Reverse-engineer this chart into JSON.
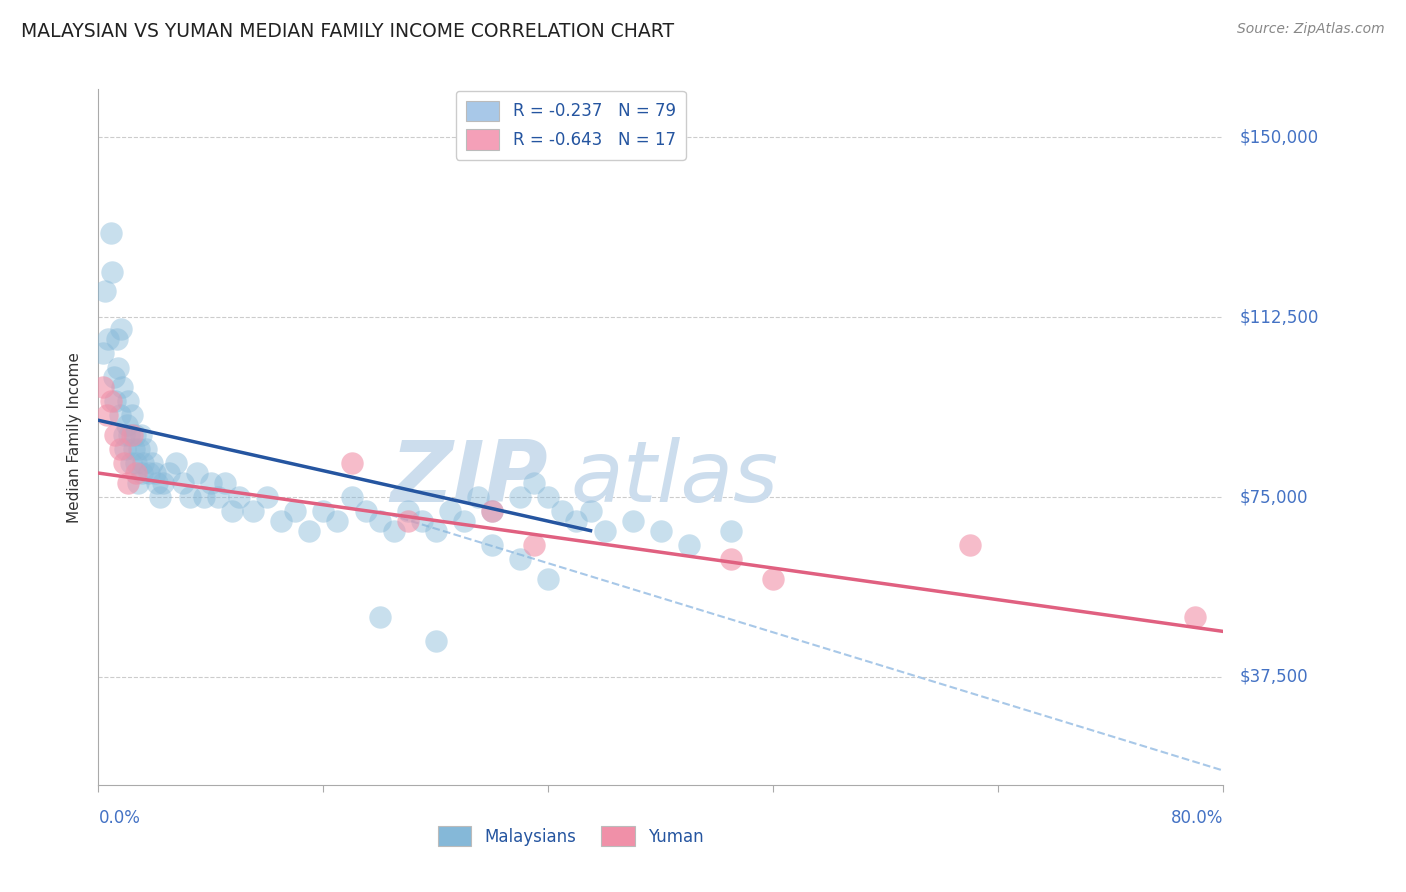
{
  "title": "MALAYSIAN VS YUMAN MEDIAN FAMILY INCOME CORRELATION CHART",
  "source": "Source: ZipAtlas.com",
  "ylabel": "Median Family Income",
  "yticks": [
    37500,
    75000,
    112500,
    150000
  ],
  "ytick_labels": [
    "$37,500",
    "$75,000",
    "$112,500",
    "$150,000"
  ],
  "xmin": 0.0,
  "xmax": 0.8,
  "ymin": 15000,
  "ymax": 160000,
  "legend_entries": [
    {
      "label": "R = -0.237   N = 79",
      "color": "#a8c8e8"
    },
    {
      "label": "R = -0.643   N = 17",
      "color": "#f4a0b8"
    }
  ],
  "legend_bottom": [
    "Malaysians",
    "Yuman"
  ],
  "malaysian_x": [
    0.003,
    0.005,
    0.007,
    0.009,
    0.01,
    0.011,
    0.012,
    0.013,
    0.014,
    0.015,
    0.016,
    0.017,
    0.018,
    0.019,
    0.02,
    0.021,
    0.022,
    0.023,
    0.024,
    0.025,
    0.026,
    0.027,
    0.028,
    0.029,
    0.03,
    0.031,
    0.032,
    0.034,
    0.036,
    0.038,
    0.04,
    0.042,
    0.044,
    0.046,
    0.05,
    0.055,
    0.06,
    0.065,
    0.07,
    0.075,
    0.08,
    0.085,
    0.09,
    0.095,
    0.1,
    0.11,
    0.12,
    0.13,
    0.14,
    0.15,
    0.16,
    0.17,
    0.18,
    0.19,
    0.2,
    0.21,
    0.22,
    0.23,
    0.24,
    0.25,
    0.26,
    0.27,
    0.28,
    0.3,
    0.31,
    0.32,
    0.33,
    0.34,
    0.35,
    0.36,
    0.38,
    0.4,
    0.42,
    0.45,
    0.28,
    0.3,
    0.32,
    0.2,
    0.24
  ],
  "malaysian_y": [
    105000,
    118000,
    108000,
    130000,
    122000,
    100000,
    95000,
    108000,
    102000,
    92000,
    110000,
    98000,
    88000,
    85000,
    90000,
    95000,
    88000,
    82000,
    92000,
    85000,
    88000,
    82000,
    78000,
    85000,
    88000,
    80000,
    82000,
    85000,
    80000,
    82000,
    80000,
    78000,
    75000,
    78000,
    80000,
    82000,
    78000,
    75000,
    80000,
    75000,
    78000,
    75000,
    78000,
    72000,
    75000,
    72000,
    75000,
    70000,
    72000,
    68000,
    72000,
    70000,
    75000,
    72000,
    70000,
    68000,
    72000,
    70000,
    68000,
    72000,
    70000,
    75000,
    72000,
    75000,
    78000,
    75000,
    72000,
    70000,
    72000,
    68000,
    70000,
    68000,
    65000,
    68000,
    65000,
    62000,
    58000,
    50000,
    45000
  ],
  "yuman_x": [
    0.003,
    0.006,
    0.009,
    0.012,
    0.015,
    0.018,
    0.021,
    0.024,
    0.027,
    0.18,
    0.22,
    0.28,
    0.31,
    0.45,
    0.48,
    0.62,
    0.78
  ],
  "yuman_y": [
    98000,
    92000,
    95000,
    88000,
    85000,
    82000,
    78000,
    88000,
    80000,
    82000,
    70000,
    72000,
    65000,
    62000,
    58000,
    65000,
    50000
  ],
  "malaysian_line": {
    "x0": 0.0,
    "x1": 0.35,
    "y0": 91000,
    "y1": 68000
  },
  "yuman_line": {
    "x0": 0.0,
    "x1": 0.8,
    "y0": 80000,
    "y1": 47000
  },
  "dashed_line": {
    "x0": 0.2,
    "x1": 0.8,
    "y0": 72000,
    "y1": 18000
  },
  "title_color": "#222222",
  "source_color": "#888888",
  "blue_scatter_color": "#85b8d8",
  "blue_line_color": "#2555a0",
  "pink_scatter_color": "#f090a8",
  "pink_line_color": "#e06080",
  "dashed_color": "#a8c8e8",
  "ylabel_color": "#333333",
  "ytick_color": "#4472c4",
  "xtick_color": "#4472c4",
  "grid_color": "#cccccc",
  "watermark_left": "ZIP",
  "watermark_right": "atlas",
  "watermark_color": "#ccdded"
}
